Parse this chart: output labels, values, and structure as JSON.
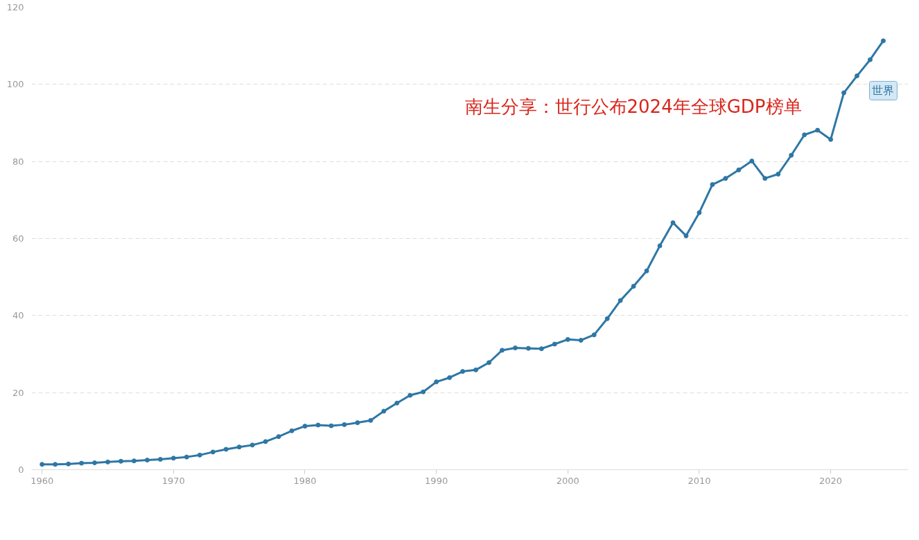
{
  "chart_data": {
    "type": "line",
    "x": [
      1960,
      1961,
      1962,
      1963,
      1964,
      1965,
      1966,
      1967,
      1968,
      1969,
      1970,
      1971,
      1972,
      1973,
      1974,
      1975,
      1976,
      1977,
      1978,
      1979,
      1980,
      1981,
      1982,
      1983,
      1984,
      1985,
      1986,
      1987,
      1988,
      1989,
      1990,
      1991,
      1992,
      1993,
      1994,
      1995,
      1996,
      1997,
      1998,
      1999,
      2000,
      2001,
      2002,
      2003,
      2004,
      2005,
      2006,
      2007,
      2008,
      2009,
      2010,
      2011,
      2012,
      2013,
      2014,
      2015,
      2016,
      2017,
      2018,
      2019,
      2020,
      2021,
      2022,
      2023,
      2024
    ],
    "series": [
      {
        "name": "世界",
        "color": "#2e77a5",
        "values": [
          1.4,
          1.4,
          1.5,
          1.7,
          1.8,
          2.0,
          2.2,
          2.3,
          2.5,
          2.7,
          3.0,
          3.3,
          3.8,
          4.6,
          5.3,
          5.9,
          6.4,
          7.3,
          8.6,
          10.1,
          11.3,
          11.6,
          11.4,
          11.7,
          12.2,
          12.8,
          15.2,
          17.3,
          19.3,
          20.2,
          22.8,
          23.9,
          25.5,
          25.9,
          27.8,
          31.0,
          31.6,
          31.5,
          31.4,
          32.6,
          33.8,
          33.6,
          35.0,
          39.2,
          43.9,
          47.6,
          51.6,
          58.1,
          64.1,
          60.7,
          66.7,
          74.0,
          75.6,
          77.8,
          80.1,
          75.6,
          76.7,
          81.6,
          86.9,
          88.1,
          85.7,
          97.8,
          102.2,
          106.4,
          111.3
        ]
      }
    ],
    "xlim": [
      1959.2,
      2025.9
    ],
    "ylim": [
      0,
      120
    ],
    "xticks": [
      1960,
      1970,
      1980,
      1990,
      2000,
      2010,
      2020
    ],
    "yticks": [
      0,
      20,
      40,
      60,
      80,
      100,
      120
    ],
    "grid": "y",
    "marker": "circle",
    "line_style": "solid",
    "annotations": [
      "南生分享：世行公布2024年全球GDP榜单"
    ]
  }
}
